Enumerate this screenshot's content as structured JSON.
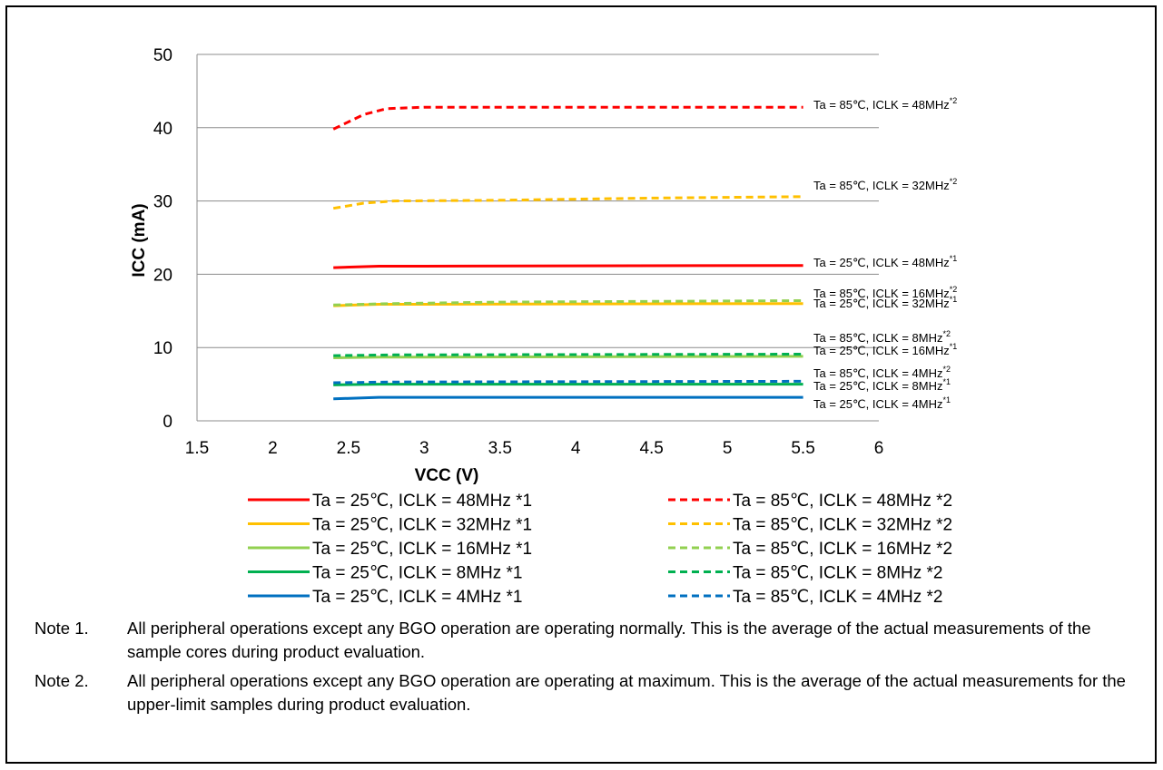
{
  "chart_data": {
    "type": "line",
    "xlabel": "VCC (V)",
    "ylabel": "ICC (mA)",
    "xlim": [
      1.5,
      6
    ],
    "ylim": [
      0,
      50
    ],
    "x_ticks": [
      "1.5",
      "2",
      "2.5",
      "3",
      "3.5",
      "4",
      "4.5",
      "5",
      "5.5",
      "6"
    ],
    "y_ticks": [
      "0",
      "10",
      "20",
      "30",
      "40",
      "50"
    ],
    "grid": "horizontal",
    "legend_position": "bottom",
    "series": [
      {
        "name": "Ta = 25℃, ICLK = 48MHz *1",
        "end_label": "Ta = 25℃, ICLK = 48MHz",
        "end_sup": "*1",
        "color": "#ff0000",
        "dash": false,
        "points": [
          [
            2.4,
            20.9
          ],
          [
            2.7,
            21.1
          ],
          [
            3.0,
            21.1
          ],
          [
            5.5,
            21.2
          ]
        ]
      },
      {
        "name": "Ta = 25℃, ICLK = 32MHz *1",
        "end_label": "Ta = 25℃, ICLK = 32MHz",
        "end_sup": "*1",
        "color": "#ffc000",
        "dash": false,
        "points": [
          [
            2.4,
            15.7
          ],
          [
            2.7,
            15.9
          ],
          [
            3.0,
            15.9
          ],
          [
            5.5,
            16.0
          ]
        ]
      },
      {
        "name": "Ta = 25℃, ICLK = 16MHz *1",
        "end_label": "Ta = 25℃, ICLK = 16MHz",
        "end_sup": "*1",
        "color": "#92d050",
        "dash": false,
        "points": [
          [
            2.4,
            8.6
          ],
          [
            2.7,
            8.7
          ],
          [
            3.0,
            8.7
          ],
          [
            5.5,
            8.8
          ]
        ]
      },
      {
        "name": "Ta = 25℃, ICLK = 8MHz *1",
        "end_label": "Ta = 25℃, ICLK = 8MHz",
        "end_sup": "*1",
        "color": "#00b050",
        "dash": false,
        "points": [
          [
            2.4,
            4.9
          ],
          [
            2.7,
            5.0
          ],
          [
            3.0,
            5.0
          ],
          [
            5.5,
            5.0
          ]
        ]
      },
      {
        "name": "Ta = 25℃, ICLK = 4MHz *1",
        "end_label": "Ta = 25℃, ICLK = 4MHz",
        "end_sup": "*1",
        "color": "#0070c0",
        "dash": false,
        "points": [
          [
            2.4,
            3.0
          ],
          [
            2.7,
            3.2
          ],
          [
            3.0,
            3.2
          ],
          [
            5.5,
            3.2
          ]
        ]
      },
      {
        "name": "Ta = 85℃, ICLK = 48MHz *2",
        "end_label": "Ta = 85℃, ICLK = 48MHz",
        "end_sup": "*2",
        "color": "#ff0000",
        "dash": true,
        "points": [
          [
            2.4,
            39.8
          ],
          [
            2.6,
            41.8
          ],
          [
            2.75,
            42.6
          ],
          [
            3.0,
            42.8
          ],
          [
            5.5,
            42.8
          ]
        ]
      },
      {
        "name": "Ta = 85℃, ICLK = 32MHz *2",
        "end_label": "Ta = 85℃, ICLK = 32MHz",
        "end_sup": "*2",
        "color": "#ffc000",
        "dash": true,
        "points": [
          [
            2.4,
            29.0
          ],
          [
            2.6,
            29.7
          ],
          [
            2.8,
            30.0
          ],
          [
            3.5,
            30.1
          ],
          [
            4.5,
            30.4
          ],
          [
            5.5,
            30.6
          ]
        ]
      },
      {
        "name": "Ta = 85℃, ICLK = 16MHz *2",
        "end_label": "Ta = 85℃, ICLK = 16MHz",
        "end_sup": "*2",
        "color": "#92d050",
        "dash": true,
        "points": [
          [
            2.4,
            15.8
          ],
          [
            2.8,
            16.0
          ],
          [
            3.5,
            16.2
          ],
          [
            5.5,
            16.4
          ]
        ]
      },
      {
        "name": "Ta = 85℃, ICLK = 8MHz *2",
        "end_label": "Ta = 85℃, ICLK = 8MHz",
        "end_sup": "*2",
        "color": "#00b050",
        "dash": true,
        "points": [
          [
            2.4,
            8.9
          ],
          [
            2.8,
            9.0
          ],
          [
            5.5,
            9.1
          ]
        ]
      },
      {
        "name": "Ta = 85℃, ICLK = 4MHz *2",
        "end_label": "Ta = 85℃, ICLK = 4MHz",
        "end_sup": "*2",
        "color": "#0070c0",
        "dash": true,
        "points": [
          [
            2.4,
            5.2
          ],
          [
            2.8,
            5.3
          ],
          [
            5.5,
            5.4
          ]
        ]
      }
    ]
  },
  "notes": [
    {
      "label": "Note 1.",
      "text": "All peripheral operations except any BGO operation are operating normally. This is the average of the actual measurements of the sample cores during product evaluation."
    },
    {
      "label": "Note 2.",
      "text": "All peripheral operations except any BGO operation are operating at maximum. This is the average of the actual measurements for the upper-limit samples during product evaluation."
    }
  ]
}
